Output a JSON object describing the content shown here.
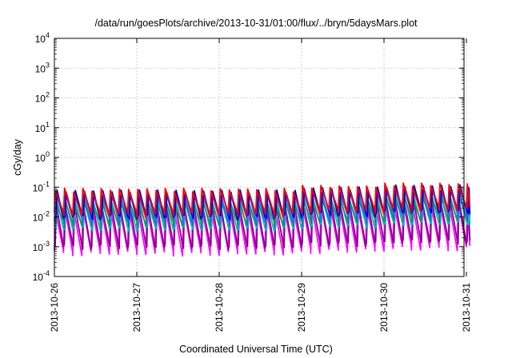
{
  "chart_data": {
    "type": "line",
    "title": "/data/run/goesPlots/archive/2013-10-31/01:00/flux/../bryn/5daysMars.plot",
    "xlabel": "Coordinated Universal Time (UTC)",
    "ylabel": "cGy/day",
    "yscale": "log",
    "ylim": [
      0.0001,
      10000
    ],
    "xlim": [
      "2013-10-26",
      "2013-10-31 01:00"
    ],
    "x_ticks": [
      "2013-10-26",
      "2013-10-27",
      "2013-10-28",
      "2013-10-29",
      "2013-10-30",
      "2013-10-31"
    ],
    "y_ticks": [
      {
        "mant": "10",
        "exp": "-4",
        "value": 0.0001
      },
      {
        "mant": "10",
        "exp": "-3",
        "value": 0.001
      },
      {
        "mant": "10",
        "exp": "-2",
        "value": 0.01
      },
      {
        "mant": "10",
        "exp": "-1",
        "value": 0.1
      },
      {
        "mant": "10",
        "exp": "0",
        "value": 1
      },
      {
        "mant": "10",
        "exp": "1",
        "value": 10
      },
      {
        "mant": "10",
        "exp": "2",
        "value": 100
      },
      {
        "mant": "10",
        "exp": "3",
        "value": 1000
      },
      {
        "mant": "10",
        "exp": "4",
        "value": 10000
      }
    ],
    "grid": true,
    "legend": "none",
    "series_pattern": "sawtooth: sharp rise at each onset, decaying until the next onset",
    "series": [
      {
        "color": "#ff00ff",
        "peak": 0.02,
        "trough": 0.0006
      },
      {
        "color": "#8b008b",
        "peak": 0.025,
        "trough": 0.001
      },
      {
        "color": "#00bcbc",
        "peak": 0.03,
        "trough": 0.004
      },
      {
        "color": "#2e8b57",
        "peak": 0.035,
        "trough": 0.006
      },
      {
        "color": "#1e6fff",
        "peak": 0.06,
        "trough": 0.008
      },
      {
        "color": "#0000cd",
        "peak": 0.07,
        "trough": 0.01
      },
      {
        "color": "#ff0000",
        "peak": 0.08,
        "trough": 0.012
      }
    ],
    "days": [
      {
        "amp": [
          1,
          1,
          1,
          1,
          1,
          1,
          1,
          1,
          1
        ]
      },
      {
        "amp": [
          1,
          1,
          1,
          1,
          1,
          1,
          1,
          1,
          1
        ]
      },
      {
        "amp": [
          1,
          1,
          1,
          1,
          1,
          1,
          1,
          1,
          1
        ]
      },
      {
        "amp": [
          1.25,
          1.25,
          1.25,
          1.25,
          1.25,
          1.25,
          1.25,
          1.25,
          1.25
        ]
      },
      {
        "amp": [
          1.5,
          1.5,
          1.5,
          1.5,
          1.5,
          1.5,
          1.5,
          1.5,
          1.5
        ]
      },
      {
        "amp": [
          1.5
        ]
      }
    ]
  }
}
